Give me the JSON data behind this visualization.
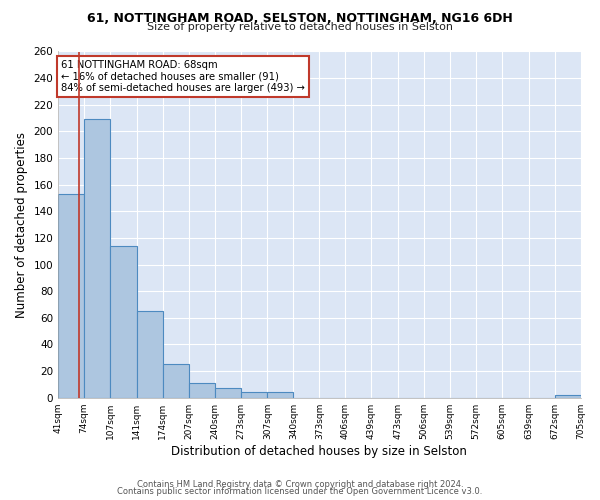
{
  "title1": "61, NOTTINGHAM ROAD, SELSTON, NOTTINGHAM, NG16 6DH",
  "title2": "Size of property relative to detached houses in Selston",
  "xlabel": "Distribution of detached houses by size in Selston",
  "ylabel": "Number of detached properties",
  "footer1": "Contains HM Land Registry data © Crown copyright and database right 2024.",
  "footer2": "Contains public sector information licensed under the Open Government Licence v3.0.",
  "bin_edges": [
    41,
    74,
    107,
    141,
    174,
    207,
    240,
    273,
    307,
    340,
    373,
    406,
    439,
    473,
    506,
    539,
    572,
    605,
    639,
    672,
    705
  ],
  "bin_counts": [
    153,
    209,
    114,
    65,
    25,
    11,
    7,
    4,
    4,
    0,
    0,
    0,
    0,
    0,
    0,
    0,
    0,
    0,
    0,
    2
  ],
  "bar_color": "#adc6e0",
  "bar_edge_color": "#4d8ac0",
  "bg_color": "#dce6f5",
  "fig_bg_color": "#ffffff",
  "grid_color": "#ffffff",
  "vline_x": 68,
  "vline_color": "#c0392b",
  "annotation_text": "61 NOTTINGHAM ROAD: 68sqm\n← 16% of detached houses are smaller (91)\n84% of semi-detached houses are larger (493) →",
  "annotation_box_color": "#ffffff",
  "annotation_box_edge": "#c0392b",
  "ylim": [
    0,
    260
  ],
  "yticks": [
    0,
    20,
    40,
    60,
    80,
    100,
    120,
    140,
    160,
    180,
    200,
    220,
    240,
    260
  ],
  "tick_labels": [
    "41sqm",
    "74sqm",
    "107sqm",
    "141sqm",
    "174sqm",
    "207sqm",
    "240sqm",
    "273sqm",
    "307sqm",
    "340sqm",
    "373sqm",
    "406sqm",
    "439sqm",
    "473sqm",
    "506sqm",
    "539sqm",
    "572sqm",
    "605sqm",
    "639sqm",
    "672sqm",
    "705sqm"
  ]
}
